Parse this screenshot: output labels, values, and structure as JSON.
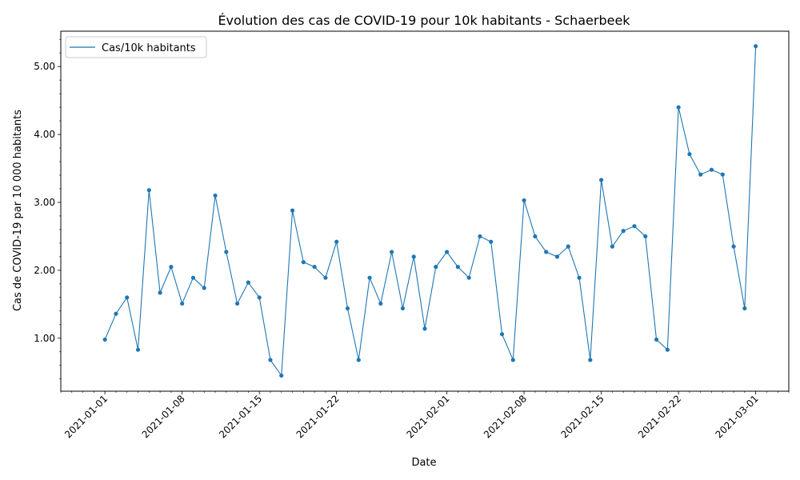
{
  "chart_data": {
    "type": "line",
    "title": "Évolution des cas de COVID-19 pour 10k habitants - Schaerbeek",
    "xlabel": "Date",
    "ylabel": "Cas de COVID-19 par 10 000 habitants",
    "x_tick_labels": [
      "2021-01-01",
      "2021-01-08",
      "2021-01-15",
      "2021-01-22",
      "2021-02-01",
      "2021-02-08",
      "2021-02-15",
      "2021-02-22",
      "2021-03-01"
    ],
    "x_tick_dates": [
      "2021-01-01",
      "2021-01-08",
      "2021-01-15",
      "2021-01-22",
      "2021-02-01",
      "2021-02-08",
      "2021-02-15",
      "2021-02-22",
      "2021-03-01"
    ],
    "y_ticks": [
      1.0,
      2.0,
      3.0,
      4.0,
      5.0
    ],
    "y_tick_labels": [
      "1.00",
      "2.00",
      "3.00",
      "4.00",
      "5.00"
    ],
    "y_minor_step": 0.2,
    "ylim": [
      0.22,
      5.52
    ],
    "xlim": [
      "2020-12-28",
      "2021-03-04"
    ],
    "grid": false,
    "legend_position": "top-left",
    "series": [
      {
        "name": "Cas/10k habitants",
        "color": "#1f77b4",
        "x": [
          "2021-01-01",
          "2021-01-02",
          "2021-01-03",
          "2021-01-04",
          "2021-01-05",
          "2021-01-06",
          "2021-01-07",
          "2021-01-08",
          "2021-01-09",
          "2021-01-10",
          "2021-01-11",
          "2021-01-12",
          "2021-01-13",
          "2021-01-14",
          "2021-01-15",
          "2021-01-16",
          "2021-01-17",
          "2021-01-18",
          "2021-01-19",
          "2021-01-20",
          "2021-01-21",
          "2021-01-22",
          "2021-01-23",
          "2021-01-24",
          "2021-01-25",
          "2021-01-26",
          "2021-01-27",
          "2021-01-28",
          "2021-01-29",
          "2021-01-30",
          "2021-01-31",
          "2021-02-01",
          "2021-02-02",
          "2021-02-03",
          "2021-02-04",
          "2021-02-05",
          "2021-02-06",
          "2021-02-07",
          "2021-02-08",
          "2021-02-09",
          "2021-02-10",
          "2021-02-11",
          "2021-02-12",
          "2021-02-13",
          "2021-02-14",
          "2021-02-15",
          "2021-02-16",
          "2021-02-17",
          "2021-02-18",
          "2021-02-19",
          "2021-02-20",
          "2021-02-21",
          "2021-02-22",
          "2021-02-23",
          "2021-02-24",
          "2021-02-25",
          "2021-02-26",
          "2021-02-27",
          "2021-02-28",
          "2021-03-01"
        ],
        "values": [
          0.98,
          1.36,
          1.6,
          0.83,
          3.18,
          1.67,
          2.05,
          1.51,
          1.89,
          1.74,
          3.1,
          2.27,
          1.51,
          1.82,
          1.6,
          0.68,
          0.45,
          2.88,
          2.12,
          2.05,
          1.89,
          2.42,
          1.44,
          0.68,
          1.89,
          1.51,
          2.27,
          1.44,
          2.2,
          1.14,
          2.05,
          2.27,
          2.05,
          1.89,
          2.5,
          2.42,
          1.06,
          0.68,
          3.03,
          2.5,
          2.27,
          2.2,
          2.35,
          1.89,
          0.68,
          3.33,
          2.35,
          2.58,
          2.65,
          2.5,
          0.98,
          0.83,
          4.4,
          3.71,
          3.41,
          3.48,
          3.41,
          2.35,
          1.44,
          5.3
        ]
      }
    ]
  }
}
